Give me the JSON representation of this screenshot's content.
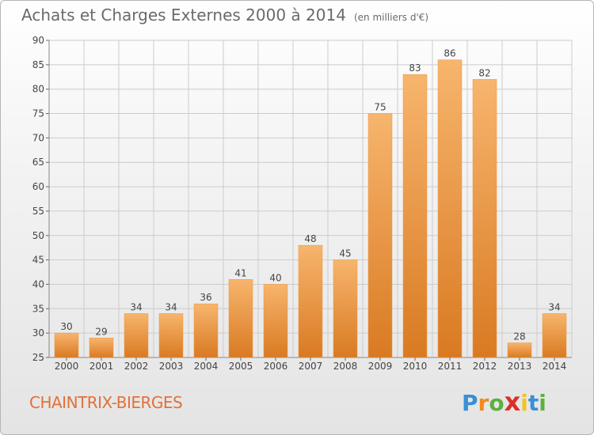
{
  "title": "Achats et Charges Externes 2000 à 2014",
  "unit": "(en milliers d'€)",
  "commune": "CHAINTRIX-BIERGES",
  "logo": {
    "letters": [
      "P",
      "r",
      "o",
      "x",
      "i",
      "t",
      "i"
    ],
    "colors": [
      "#3a8fd6",
      "#f28a1e",
      "#5db03c",
      "#d9302a",
      "#f3c417",
      "#3a8fd6",
      "#5db03c"
    ]
  },
  "colors": {
    "bar": "#f0953e",
    "bar_light": "#f7b56d",
    "bar_dark": "#d97a22",
    "grid": "#cccccc"
  },
  "chart_data": {
    "type": "bar",
    "categories": [
      "2000",
      "2001",
      "2002",
      "2003",
      "2004",
      "2005",
      "2006",
      "2007",
      "2008",
      "2009",
      "2010",
      "2011",
      "2012",
      "2013",
      "2014"
    ],
    "values": [
      30,
      29,
      34,
      34,
      36,
      41,
      40,
      48,
      45,
      75,
      83,
      86,
      82,
      28,
      34
    ],
    "ylim": [
      25,
      90
    ],
    "yticks": [
      25,
      30,
      35,
      40,
      45,
      50,
      55,
      60,
      65,
      70,
      75,
      80,
      85,
      90
    ],
    "grid": true,
    "data_labels": true
  }
}
